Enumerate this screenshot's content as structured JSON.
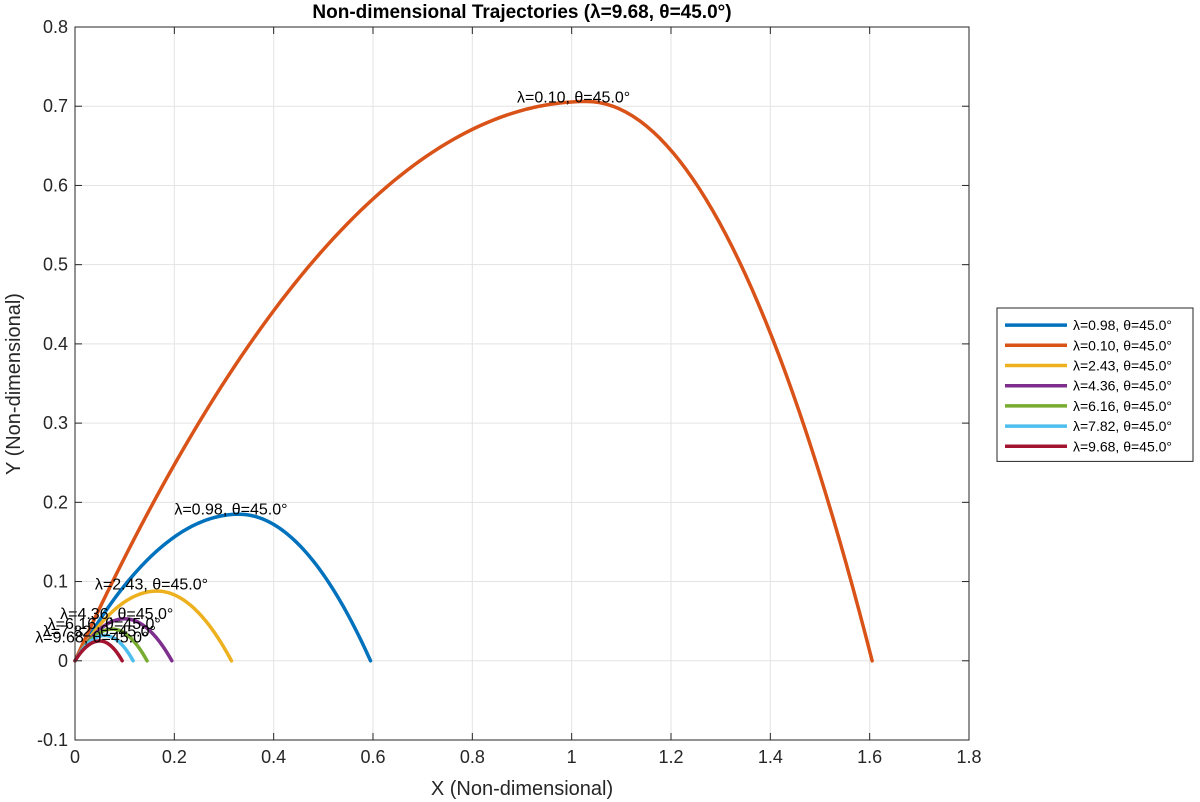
{
  "chart_data": {
    "type": "line",
    "title": "Non-dimensional Trajectories (λ=9.68, θ=45.0°)",
    "xlabel": "X (Non-dimensional)",
    "ylabel": "Y (Non-dimensional)",
    "xlim": [
      0,
      1.8
    ],
    "ylim": [
      -0.1,
      0.8
    ],
    "xticks": [
      0,
      0.2,
      0.4,
      0.6,
      0.8,
      1.0,
      1.2,
      1.4,
      1.6,
      1.8
    ],
    "yticks": [
      -0.1,
      0,
      0.1,
      0.2,
      0.3,
      0.4,
      0.5,
      0.6,
      0.7,
      0.8
    ],
    "xtick_labels": [
      "0",
      "0.2",
      "0.4",
      "0.6",
      "0.8",
      "1",
      "1.2",
      "1.4",
      "1.6",
      "1.8"
    ],
    "ytick_labels": [
      "-0.1",
      "0",
      "0.1",
      "0.2",
      "0.3",
      "0.4",
      "0.5",
      "0.6",
      "0.7",
      "0.8"
    ],
    "grid": true,
    "legend_position": "outside-right",
    "series": [
      {
        "name": "λ=0.98, θ=45.0°",
        "color": "#0072BD",
        "range": 0.595,
        "apex_x": 0.33,
        "apex_y": 0.185
      },
      {
        "name": "λ=0.10, θ=45.0°",
        "color": "#D95319",
        "range": 1.605,
        "apex_x": 1.03,
        "apex_y": 0.706
      },
      {
        "name": "λ=2.43, θ=45.0°",
        "color": "#EDB120",
        "range": 0.315,
        "apex_x": 0.165,
        "apex_y": 0.088
      },
      {
        "name": "λ=4.36, θ=45.0°",
        "color": "#7E2F8E",
        "range": 0.195,
        "apex_x": 0.1,
        "apex_y": 0.053
      },
      {
        "name": "λ=6.16, θ=45.0°",
        "color": "#77AC30",
        "range": 0.145,
        "apex_x": 0.075,
        "apex_y": 0.04
      },
      {
        "name": "λ=7.82, θ=45.0°",
        "color": "#4DBEEE",
        "range": 0.117,
        "apex_x": 0.06,
        "apex_y": 0.032
      },
      {
        "name": "λ=9.68, θ=45.0°",
        "color": "#A2142F",
        "range": 0.095,
        "apex_x": 0.05,
        "apex_y": 0.025
      }
    ],
    "annotations": [
      {
        "text": "λ=0.98, θ=45.0°",
        "x": 0.2,
        "y": 0.19
      },
      {
        "text": "λ=0.10, θ=45.0°",
        "x": 0.89,
        "y": 0.71
      },
      {
        "text": "λ=2.43, θ=45.0°",
        "x": 0.04,
        "y": 0.095
      },
      {
        "text": "λ=4.36, θ=45.0°",
        "x": -0.03,
        "y": 0.058
      },
      {
        "text": "λ=6.16, θ=45.0°",
        "x": -0.055,
        "y": 0.045
      },
      {
        "text": "λ=7.82, θ=45.0°",
        "x": -0.065,
        "y": 0.036
      },
      {
        "text": "λ=9.68, θ=45.0°",
        "x": -0.08,
        "y": 0.028
      }
    ]
  }
}
